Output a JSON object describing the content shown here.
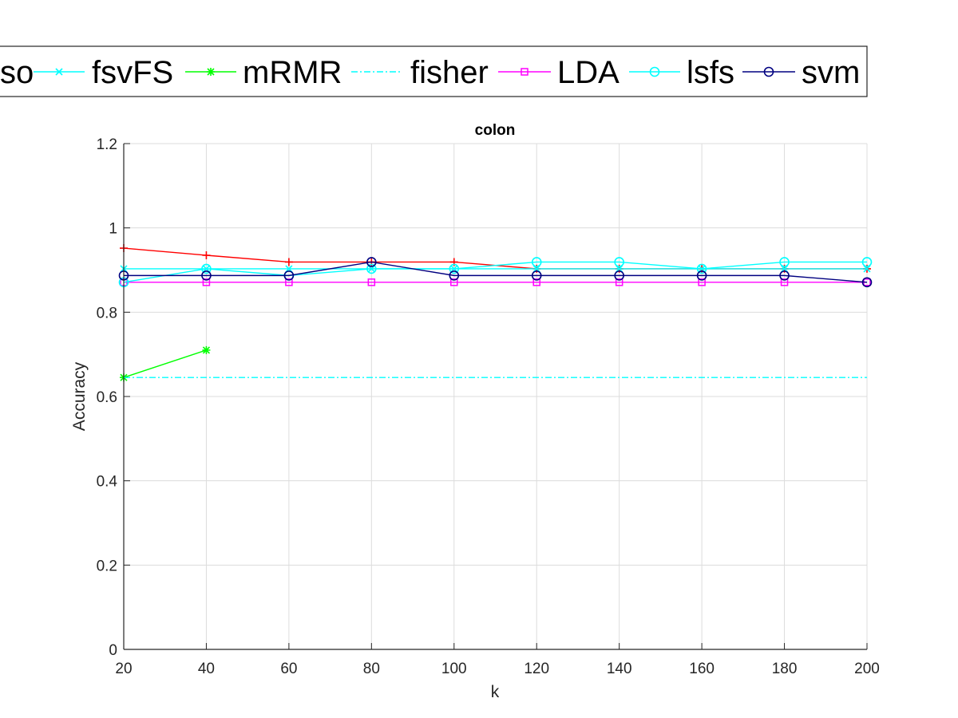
{
  "chart_data": {
    "type": "line",
    "title": "colon",
    "xlabel": "k",
    "ylabel": "Accuracy",
    "xlim": [
      20,
      200
    ],
    "ylim": [
      0,
      1.2
    ],
    "xticks": [
      20,
      40,
      60,
      80,
      100,
      120,
      140,
      160,
      180,
      200
    ],
    "yticks": [
      0,
      0.2,
      0.4,
      0.6,
      0.8,
      1,
      1.2
    ],
    "ytick_labels": [
      "0",
      "0.2",
      "0.4",
      "0.6",
      "0.8",
      "1",
      "1.2"
    ],
    "grid": true,
    "legend_position": "top",
    "x": [
      20,
      40,
      60,
      80,
      100,
      120,
      140,
      160,
      180,
      200
    ],
    "series": [
      {
        "name": "so",
        "color": "#ff0000",
        "marker": "plus",
        "dash": "solid",
        "values": [
          0.952,
          0.935,
          0.919,
          0.919,
          0.919,
          0.903,
          0.903,
          0.903,
          0.903,
          0.903
        ]
      },
      {
        "name": "fsvFS",
        "color": "#00ffff",
        "marker": "x",
        "dash": "solid",
        "values": [
          0.903,
          0.903,
          0.903,
          0.903,
          0.903,
          0.903,
          0.903,
          0.903,
          0.903,
          0.903
        ]
      },
      {
        "name": "mRMR",
        "color": "#00ff00",
        "marker": "asterisk",
        "dash": "solid",
        "values": [
          0.645,
          0.71,
          null,
          null,
          null,
          null,
          null,
          null,
          null,
          null
        ]
      },
      {
        "name": "fisher",
        "color": "#00ffff",
        "marker": "none",
        "dash": "dashdot",
        "values": [
          0.645,
          0.645,
          0.645,
          0.645,
          0.645,
          0.645,
          0.645,
          0.645,
          0.645,
          0.645
        ]
      },
      {
        "name": "LDA",
        "color": "#ff00ff",
        "marker": "square",
        "dash": "solid",
        "values": [
          0.871,
          0.871,
          0.871,
          0.871,
          0.871,
          0.871,
          0.871,
          0.871,
          0.871,
          0.871
        ]
      },
      {
        "name": "lsfs",
        "color": "#00ffff",
        "marker": "circle",
        "dash": "solid",
        "values": [
          0.871,
          0.903,
          0.887,
          0.903,
          0.903,
          0.919,
          0.919,
          0.903,
          0.919,
          0.919
        ]
      },
      {
        "name": "svm",
        "color": "#000080",
        "marker": "circle",
        "dash": "solid",
        "values": [
          0.887,
          0.887,
          0.887,
          0.919,
          0.887,
          0.887,
          0.887,
          0.887,
          0.887,
          0.871
        ]
      }
    ]
  }
}
